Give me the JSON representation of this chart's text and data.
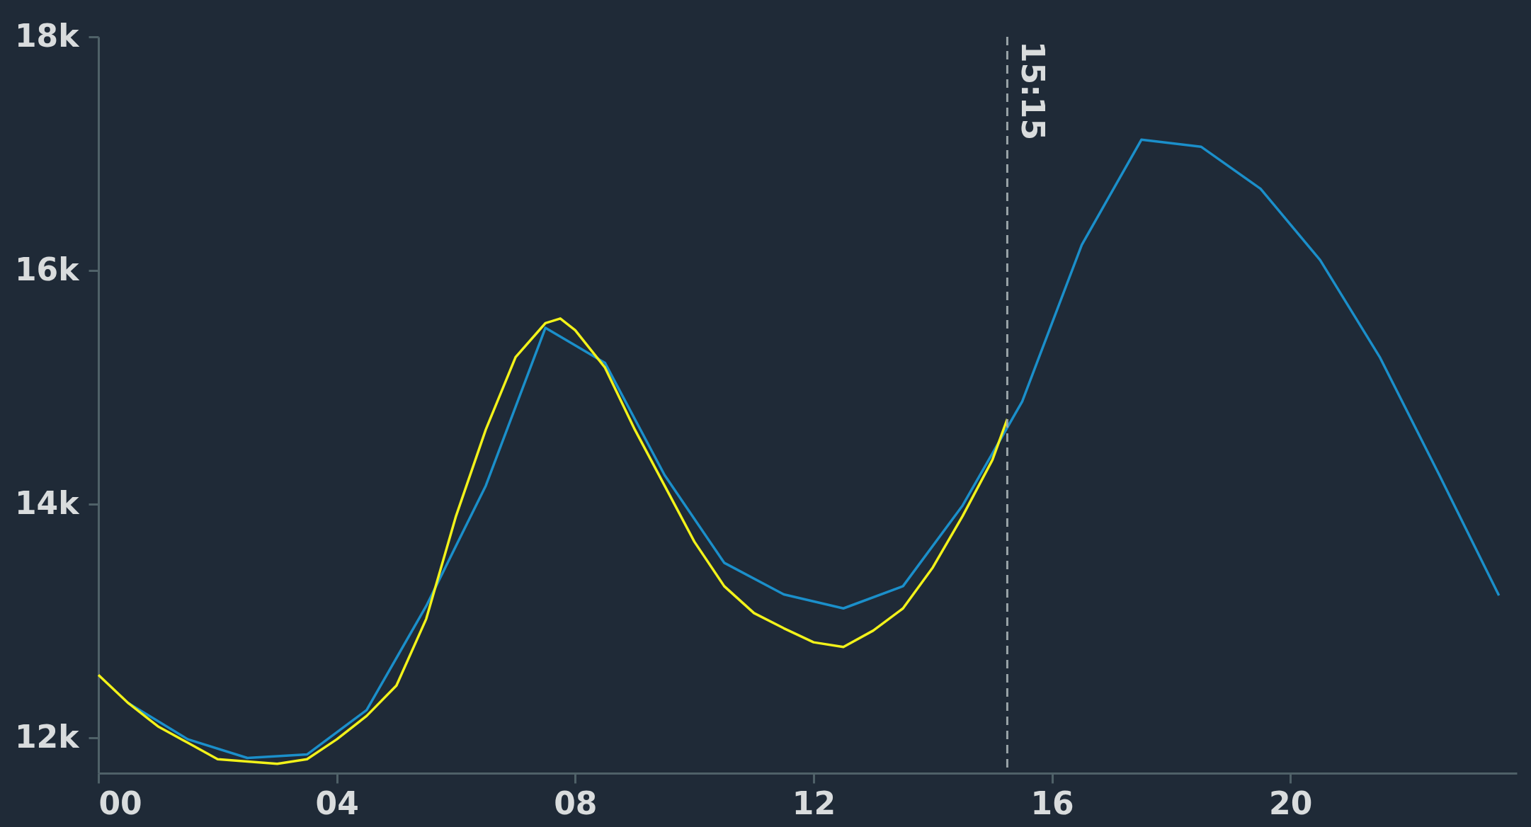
{
  "chart_data": {
    "type": "line",
    "xlim": [
      0,
      23.8
    ],
    "ylim": [
      11700,
      18000
    ],
    "xticks": [
      {
        "value": 0,
        "label": "00"
      },
      {
        "value": 4,
        "label": "04"
      },
      {
        "value": 8,
        "label": "08"
      },
      {
        "value": 12,
        "label": "12"
      },
      {
        "value": 16,
        "label": "16"
      },
      {
        "value": 20,
        "label": "20"
      }
    ],
    "yticks": [
      {
        "value": 12000,
        "label": "12k"
      },
      {
        "value": 14000,
        "label": "14k"
      },
      {
        "value": 16000,
        "label": "16k"
      },
      {
        "value": 18000,
        "label": "18k"
      }
    ],
    "grid": false,
    "legend": false,
    "marker": "none",
    "line_style": "solid",
    "series": [
      {
        "color": "#1b8fca",
        "x": [
          0.5,
          1.5,
          2.5,
          3.5,
          4.5,
          5.5,
          6.5,
          7.5,
          8.5,
          9.5,
          10.5,
          11.5,
          12.5,
          13.5,
          14.5,
          15.5,
          16.5,
          17.5,
          18.5,
          19.5,
          20.5,
          21.5,
          22.5,
          23.5
        ],
        "values": [
          12300,
          11990,
          11830,
          11860,
          12240,
          13130,
          14160,
          15510,
          15210,
          14250,
          13500,
          13230,
          13110,
          13300,
          13990,
          14880,
          16220,
          17120,
          17060,
          16700,
          16090,
          15260,
          14250,
          13220
        ]
      },
      {
        "color": "#f2f21a",
        "x": [
          0,
          0.5,
          1,
          1.5,
          2,
          2.5,
          3,
          3.5,
          4,
          4.5,
          5,
          5.5,
          6,
          6.5,
          7,
          7.5,
          7.75,
          8,
          8.5,
          9,
          9.5,
          10,
          10.5,
          11,
          11.5,
          12,
          12.5,
          13,
          13.5,
          14,
          14.5,
          15,
          15.25
        ],
        "values": [
          12540,
          12300,
          12100,
          11960,
          11820,
          11800,
          11780,
          11820,
          11990,
          12190,
          12450,
          13020,
          13900,
          14640,
          15260,
          15550,
          15590,
          15490,
          15170,
          14640,
          14160,
          13680,
          13300,
          13070,
          12940,
          12820,
          12780,
          12920,
          13110,
          13460,
          13900,
          14380,
          14730
        ]
      }
    ],
    "ref_lines": [
      {
        "axis": "x",
        "value": 15.25,
        "label": "15:15",
        "color": "#9aa4a8",
        "line_style": "dashed"
      }
    ]
  }
}
